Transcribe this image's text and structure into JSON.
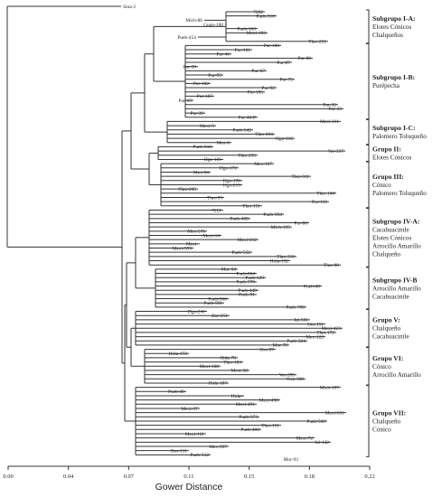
{
  "axis": {
    "label": "Gower Distance",
    "ticks": [
      "0.00",
      "0.04",
      "0.07",
      "0.11",
      "0.15",
      "0.18",
      "0.22"
    ]
  },
  "outgroup": "Sina-2",
  "leaves": [
    "7202",
    "Pueb-510",
    "Mich-86",
    "Gupo-160",
    "Pueb-163",
    "Mexi-192",
    "Pueb-454",
    "Tlax-251",
    "Pur-100",
    "Pur-101",
    "Pur-46",
    "Pur-80",
    "Pur-87",
    "Pur-59",
    "Pur-67",
    "Pur-95",
    "Pur-75",
    "Pur-102",
    "Pur-92",
    "Pur-105",
    "Pur-107",
    "Pur-15",
    "Pur-32",
    "Pur-33",
    "Pur-39",
    "Pur-44-P",
    "Mexi-211",
    "Mexi-5",
    "Pueb-542",
    "Tlax-264",
    "Hgo-116",
    "Mex-6",
    "Pueb-618",
    "Ver-537",
    "Tlax-255",
    "Hgo-101",
    "Mex-167",
    "Hgo-172",
    "Mex-94",
    "Tlax-311",
    "Hgo-196",
    "Hgo-215",
    "Tlax-205",
    "Tlax-144",
    "Tlax-93",
    "Pur-116",
    "Tlax-151",
    "7221",
    "Pueb-394",
    "Pueb-409",
    "Pur-86",
    "Mich-195",
    "Mex-576",
    "Mexi-14",
    "Mexi-212",
    "Mexi-",
    "Mexi-593",
    "Pueb-552",
    "Tlax-316",
    "Hida-192",
    "Tlax-88",
    "Mor-94",
    "Pueb-864",
    "Pueb-129",
    "Pueb-778",
    "Pueb-68",
    "Pueb-449",
    "Pueb-91",
    "Pueb-566",
    "Pueb-591",
    "Pueb-709",
    "Dgo-241",
    "Zac-251",
    "Jal-501",
    "Gto-151",
    "Mexi-423",
    "Tlax-172",
    "Mex-122",
    "Pueb-324",
    "Mor-79",
    "Oro-97",
    "Hida-172",
    "Hida-78",
    "Tlax-183",
    "Mexi-108",
    "Mexi-58",
    "Ver-395",
    "Vera-308",
    "Hida-187",
    "Mich-197",
    "Pueb-49",
    "Hida-",
    "Mexi-490",
    "Mexi-491",
    "Mexi-37",
    "Mexi-631",
    "Pueb-373",
    "Pueb-560",
    "Tlax-151",
    "Pueb-460",
    "Mexi-161",
    "Mexi-72",
    "Jal-142",
    "Mex-397",
    "Oax-111",
    "Pueb-512",
    "Mor-93"
  ],
  "groups": [
    {
      "title": "Subgrupo I-A:",
      "lines": [
        "Elotes Cónicos",
        "Chalqueños"
      ]
    },
    {
      "title": "Subgrupo I-B:",
      "lines": [
        "Purépecha"
      ]
    },
    {
      "title": "Subgrupo I-C:",
      "lines": [
        "Palomero Toluqueño"
      ]
    },
    {
      "title": "Grupo II:",
      "lines": [
        "Elotes Cónicos"
      ]
    },
    {
      "title": "Grupo III:",
      "lines": [
        "Cónico",
        "Palomero Toluqueño"
      ]
    },
    {
      "title": "Subgrupo IV-A:",
      "lines": [
        "Cacahuacintle",
        "Elotes Cónicos",
        "Arrocillo Amarillo",
        "Chalqueño"
      ]
    },
    {
      "title": "Subgrupo IV-B",
      "lines": [
        "Arrocillo Amarillo",
        "Cacahuacintle"
      ]
    },
    {
      "title": "Grupo V:",
      "lines": [
        "Chalqueño",
        "Cacahuacintle"
      ]
    },
    {
      "title": "Grupo VI:",
      "lines": [
        "Cónico",
        "Arrocillo Amarillo"
      ]
    },
    {
      "title": "Grupo VII:",
      "lines": [
        "Chalqueño",
        "Cónico"
      ]
    }
  ]
}
